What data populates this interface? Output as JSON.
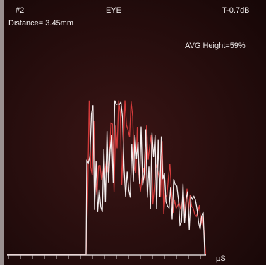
{
  "header": {
    "probe": "#2",
    "mode": "EYE",
    "gain": "T-0.7dB"
  },
  "measurements": {
    "distance": "Distance= 3.45mm",
    "avg_height": "AVG Height=59%"
  },
  "axis": {
    "unit": "µS"
  }
}
